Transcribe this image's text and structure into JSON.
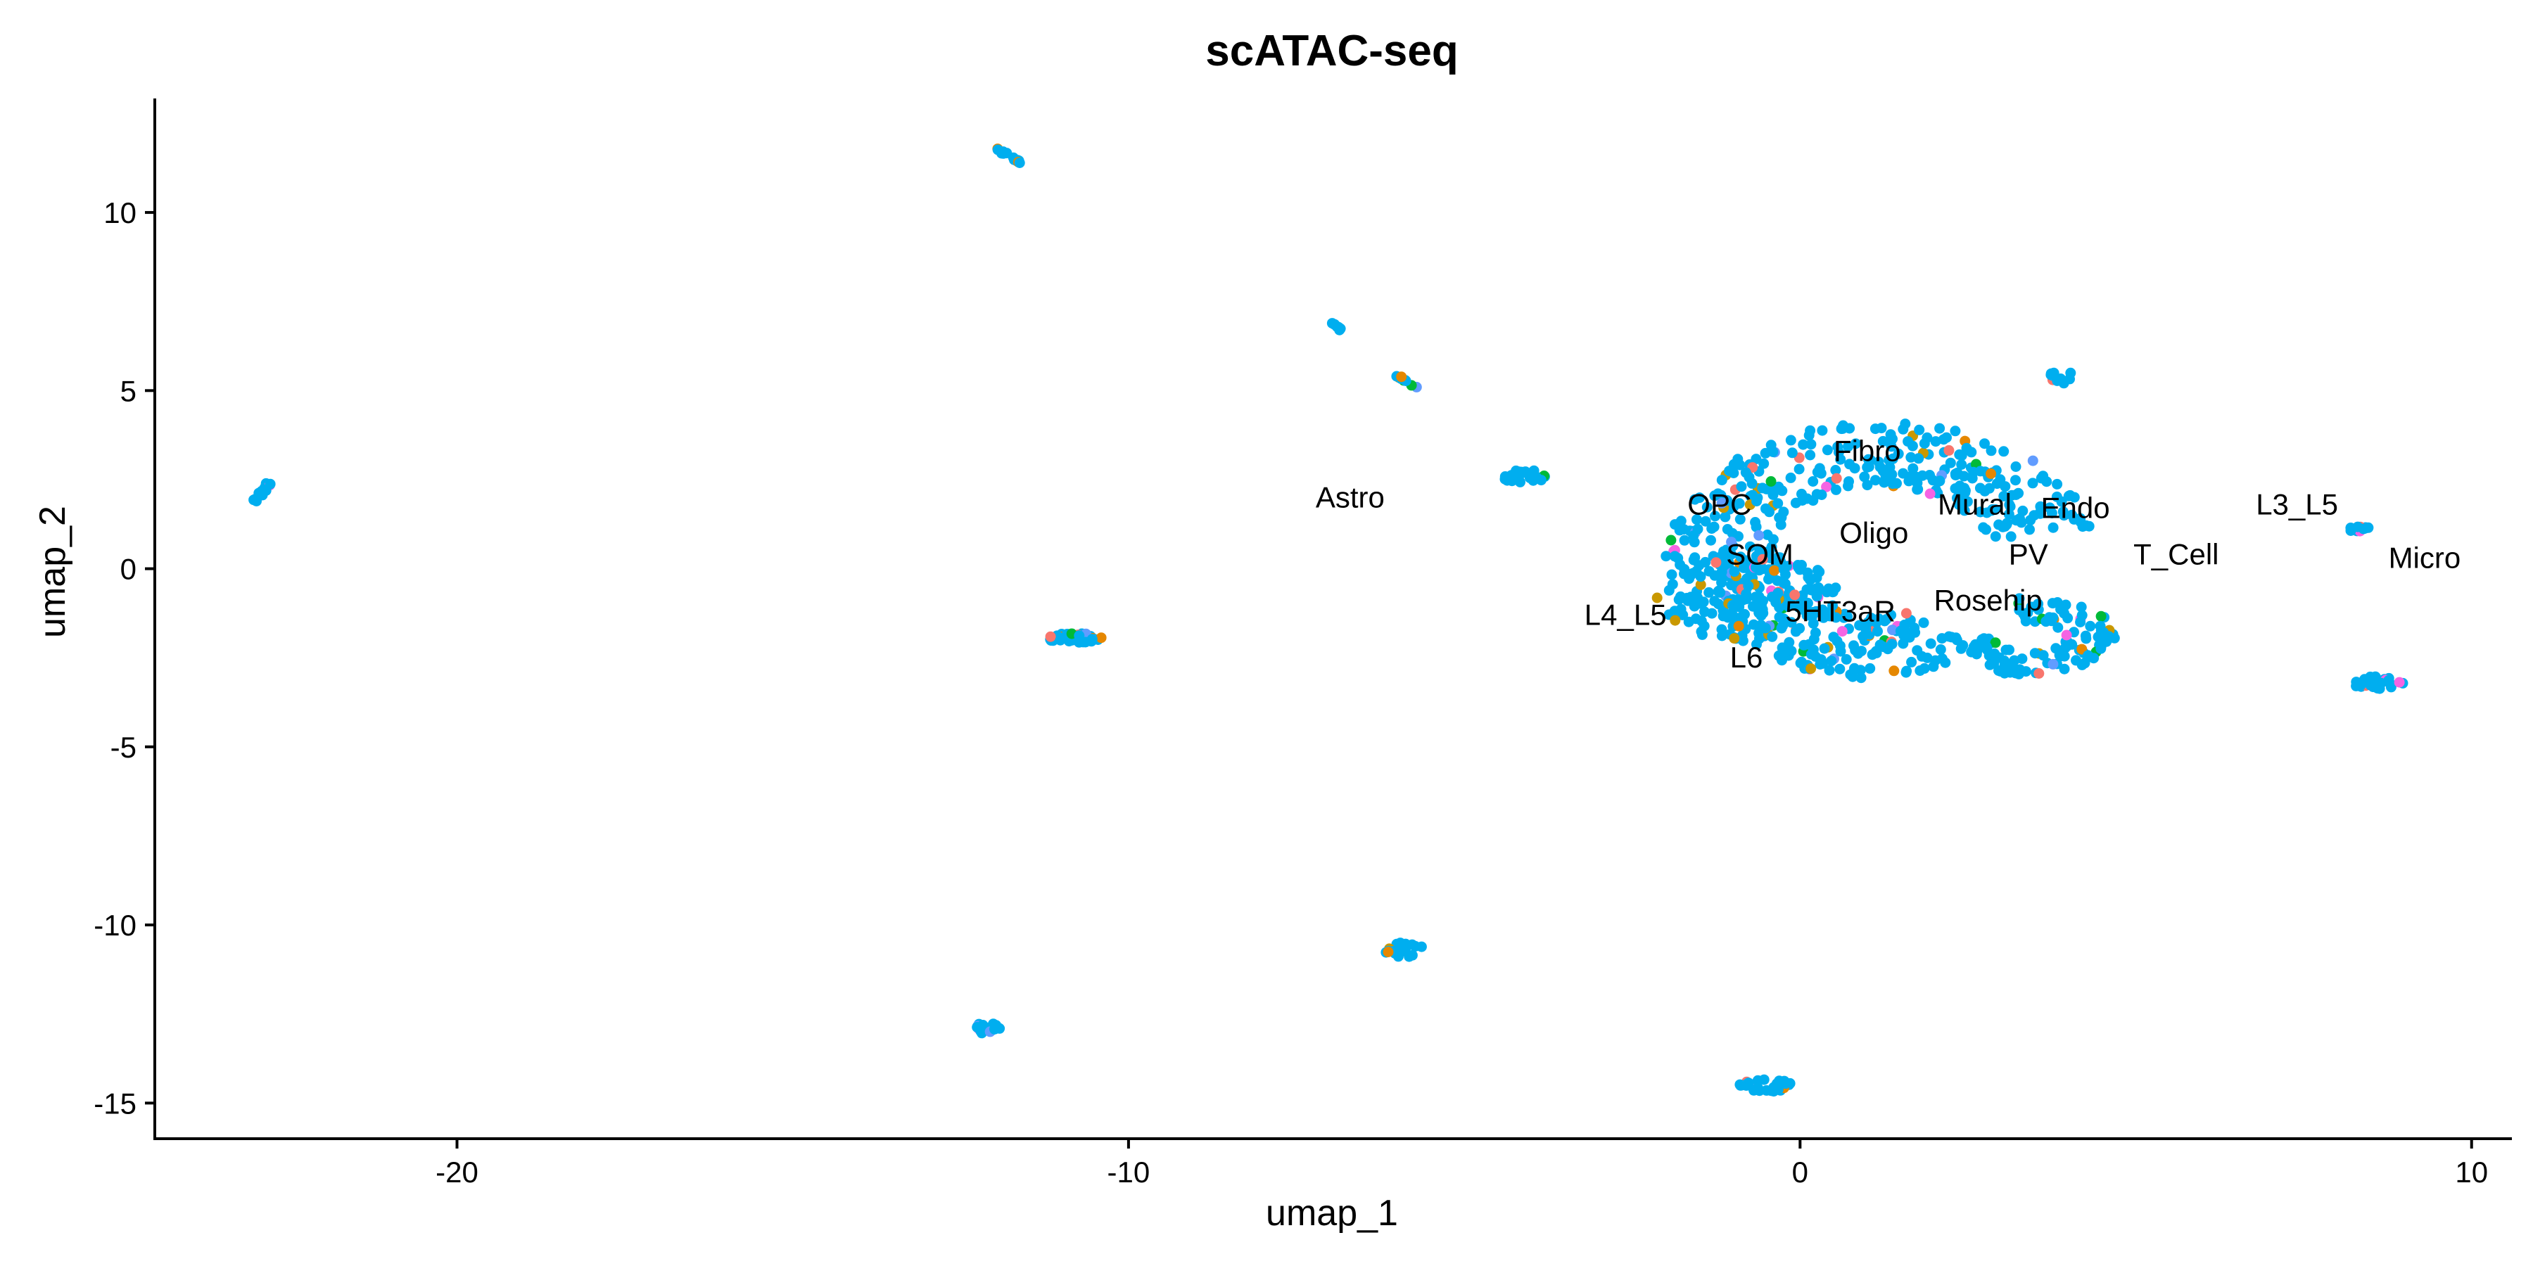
{
  "chart_data": {
    "type": "scatter",
    "title": "scATAC-seq",
    "xlabel": "umap_1",
    "ylabel": "umap_2",
    "xlim": [
      -24.5,
      10.6
    ],
    "ylim": [
      -16.0,
      13.2
    ],
    "xticks": [
      -20,
      -10,
      0,
      10
    ],
    "yticks": [
      10,
      5,
      0,
      -5,
      -10,
      -15
    ],
    "xtick_labels": [
      "-20",
      "-10",
      "0",
      "10"
    ],
    "ytick_labels": [
      "10",
      "5",
      "0",
      "-5",
      "-10",
      "-15"
    ],
    "grid": false,
    "legend": "none",
    "point_color": "#00AEEF",
    "accent_colors": [
      "#E58700",
      "#F564E3",
      "#619CFF",
      "#00BA38",
      "#F8766D",
      "#C99800"
    ],
    "labels": [
      {
        "text": "Astro",
        "x": -6.7,
        "y": 2.0
      },
      {
        "text": "Fibro",
        "x": 1.0,
        "y": 3.3
      },
      {
        "text": "OPC",
        "x": -1.2,
        "y": 1.8
      },
      {
        "text": "Mural",
        "x": 2.6,
        "y": 1.8
      },
      {
        "text": "Endo",
        "x": 4.1,
        "y": 1.7
      },
      {
        "text": "L3_L5",
        "x": 7.4,
        "y": 1.8
      },
      {
        "text": "Oligo",
        "x": 1.1,
        "y": 1.0
      },
      {
        "text": "SOM",
        "x": -0.6,
        "y": 0.4
      },
      {
        "text": "PV",
        "x": 3.4,
        "y": 0.4
      },
      {
        "text": "T_Cell",
        "x": 5.6,
        "y": 0.4
      },
      {
        "text": "Micro",
        "x": 9.3,
        "y": 0.3
      },
      {
        "text": "L4_L5",
        "x": -2.6,
        "y": -1.3
      },
      {
        "text": "5HT3aR",
        "x": 0.6,
        "y": -1.2
      },
      {
        "text": "Rosehip",
        "x": 2.8,
        "y": -0.9
      },
      {
        "text": "L6",
        "x": -0.8,
        "y": -2.5
      }
    ],
    "clusters": [
      {
        "type": "line",
        "x1": -22.8,
        "y1": 2.4,
        "x2": -23.0,
        "y2": 1.9,
        "n": 18
      },
      {
        "type": "line",
        "x1": -12.0,
        "y1": 11.8,
        "x2": -11.6,
        "y2": 11.4,
        "n": 14
      },
      {
        "type": "line",
        "x1": -7.0,
        "y1": 6.9,
        "x2": -6.8,
        "y2": 6.7,
        "n": 8
      },
      {
        "type": "line",
        "x1": -6.0,
        "y1": 5.4,
        "x2": -5.6,
        "y2": 5.0,
        "n": 10
      },
      {
        "type": "blob",
        "cx": -4.1,
        "cy": 2.6,
        "rx": 0.35,
        "ry": 0.2,
        "n": 28
      },
      {
        "type": "blob",
        "cx": -10.8,
        "cy": -1.95,
        "rx": 0.4,
        "ry": 0.15,
        "n": 40
      },
      {
        "type": "blob",
        "cx": -5.9,
        "cy": -10.7,
        "rx": 0.3,
        "ry": 0.2,
        "n": 20
      },
      {
        "type": "blob",
        "cx": -12.1,
        "cy": -12.9,
        "rx": 0.2,
        "ry": 0.15,
        "n": 16
      },
      {
        "type": "blob",
        "cx": -0.5,
        "cy": -14.5,
        "rx": 0.4,
        "ry": 0.18,
        "n": 28
      },
      {
        "type": "blob",
        "cx": 3.9,
        "cy": 5.4,
        "rx": 0.18,
        "ry": 0.2,
        "n": 10
      },
      {
        "type": "blob",
        "cx": 8.35,
        "cy": 1.1,
        "rx": 0.2,
        "ry": 0.08,
        "n": 10
      },
      {
        "type": "blob",
        "cx": 8.6,
        "cy": -3.2,
        "rx": 0.4,
        "ry": 0.18,
        "n": 36
      },
      {
        "type": "annulus",
        "cx": 1.2,
        "cy": 0.5,
        "rx": 3.2,
        "ry": 3.6,
        "thickness": 1.8,
        "gap_from_deg": -70,
        "gap_to_deg": 10,
        "n": 520
      },
      {
        "type": "blob",
        "cx": -0.8,
        "cy": -0.8,
        "rx": 1.4,
        "ry": 1.2,
        "n": 150
      },
      {
        "type": "annulus",
        "cx": 3.4,
        "cy": -1.9,
        "rx": 1.3,
        "ry": 1.1,
        "thickness": 0.8,
        "gap_from_deg": 100,
        "gap_to_deg": 200,
        "n": 120
      }
    ]
  }
}
